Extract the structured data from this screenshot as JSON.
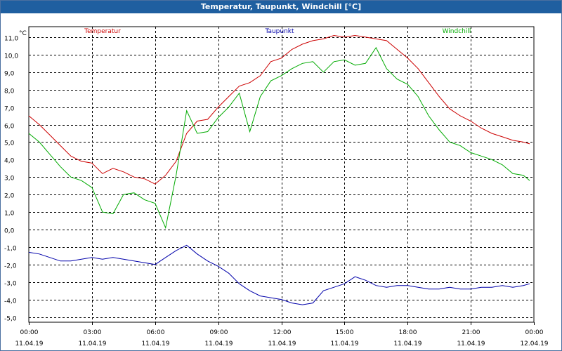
{
  "window": {
    "title": "Temperatur, Taupunkt, Windchill [°C]"
  },
  "chart_data": {
    "type": "line",
    "title": "Temperatur, Taupunkt, Windchill [°C]",
    "unit_label": "°C",
    "ylim": [
      -5.3,
      11.6
    ],
    "xlim_hours": [
      0,
      24
    ],
    "grid": true,
    "legend_placement": "top",
    "y_ticks": [
      "11,0",
      "10,0",
      "9,0",
      "8,0",
      "7,0",
      "6,0",
      "5,0",
      "4,0",
      "3,0",
      "2,0",
      "1,0",
      "0,0",
      "-1,0",
      "-2,0",
      "-3,0",
      "-4,0",
      "-5,0"
    ],
    "y_tick_values": [
      11,
      10,
      9,
      8,
      7,
      6,
      5,
      4,
      3,
      2,
      1,
      0,
      -1,
      -2,
      -3,
      -4,
      -5
    ],
    "x_ticks": [
      {
        "time": "00:00",
        "date": "11.04.19",
        "hour": 0
      },
      {
        "time": "03:00",
        "date": "11.04.19",
        "hour": 3
      },
      {
        "time": "06:00",
        "date": "11.04.19",
        "hour": 6
      },
      {
        "time": "09:00",
        "date": "11.04.19",
        "hour": 9
      },
      {
        "time": "12:00",
        "date": "11.04.19",
        "hour": 12
      },
      {
        "time": "15:00",
        "date": "11.04.19",
        "hour": 15
      },
      {
        "time": "18:00",
        "date": "11.04.19",
        "hour": 18
      },
      {
        "time": "21:00",
        "date": "11.04.19",
        "hour": 21
      },
      {
        "time": "00:00",
        "date": "12.04.19",
        "hour": 24
      }
    ],
    "x_hours": [
      0,
      0.5,
      1,
      1.5,
      2,
      2.5,
      3,
      3.5,
      4,
      4.5,
      5,
      5.5,
      6,
      6.5,
      7,
      7.5,
      8,
      8.5,
      9,
      9.5,
      10,
      10.5,
      11,
      11.5,
      12,
      12.5,
      13,
      13.5,
      14,
      14.5,
      15,
      15.5,
      16,
      16.5,
      17,
      17.5,
      18,
      18.5,
      19,
      19.5,
      20,
      20.5,
      21,
      21.5,
      22,
      22.5,
      23,
      23.5,
      23.8
    ],
    "series": [
      {
        "name": "Temperatur",
        "color": "#cc0000",
        "values": [
          6.5,
          6.0,
          5.4,
          4.8,
          4.2,
          3.9,
          3.8,
          3.2,
          3.5,
          3.3,
          3.0,
          2.9,
          2.6,
          3.1,
          3.9,
          5.5,
          6.2,
          6.3,
          7.0,
          7.6,
          8.2,
          8.4,
          8.8,
          9.6,
          9.8,
          10.3,
          10.6,
          10.8,
          10.9,
          11.1,
          11.0,
          11.1,
          11.0,
          10.9,
          10.8,
          10.3,
          9.8,
          9.2,
          8.4,
          7.6,
          6.9,
          6.5,
          6.2,
          5.8,
          5.5,
          5.3,
          5.1,
          5.0,
          4.9
        ]
      },
      {
        "name": "Taupunkt",
        "color": "#0000aa",
        "values": [
          -1.3,
          -1.4,
          -1.6,
          -1.8,
          -1.8,
          -1.7,
          -1.6,
          -1.7,
          -1.6,
          -1.7,
          -1.8,
          -1.9,
          -2.0,
          -1.6,
          -1.2,
          -0.9,
          -1.4,
          -1.8,
          -2.1,
          -2.5,
          -3.1,
          -3.5,
          -3.8,
          -3.9,
          -4.0,
          -4.2,
          -4.3,
          -4.2,
          -3.5,
          -3.3,
          -3.1,
          -2.7,
          -2.9,
          -3.2,
          -3.3,
          -3.2,
          -3.2,
          -3.3,
          -3.4,
          -3.4,
          -3.3,
          -3.4,
          -3.4,
          -3.3,
          -3.3,
          -3.2,
          -3.3,
          -3.2,
          -3.1
        ]
      },
      {
        "name": "Windchill",
        "color": "#00aa00",
        "values": [
          5.5,
          5.0,
          4.3,
          3.6,
          3.0,
          2.8,
          2.4,
          1.0,
          0.9,
          2.0,
          2.1,
          1.7,
          1.5,
          0.1,
          3.1,
          6.8,
          5.5,
          5.6,
          6.4,
          7.0,
          7.8,
          5.6,
          7.6,
          8.5,
          8.8,
          9.2,
          9.5,
          9.6,
          9.0,
          9.6,
          9.7,
          9.4,
          9.5,
          10.4,
          9.2,
          8.6,
          8.3,
          7.6,
          6.5,
          5.7,
          5.0,
          4.8,
          4.4,
          4.2,
          4.0,
          3.7,
          3.2,
          3.1,
          2.8
        ]
      }
    ]
  }
}
